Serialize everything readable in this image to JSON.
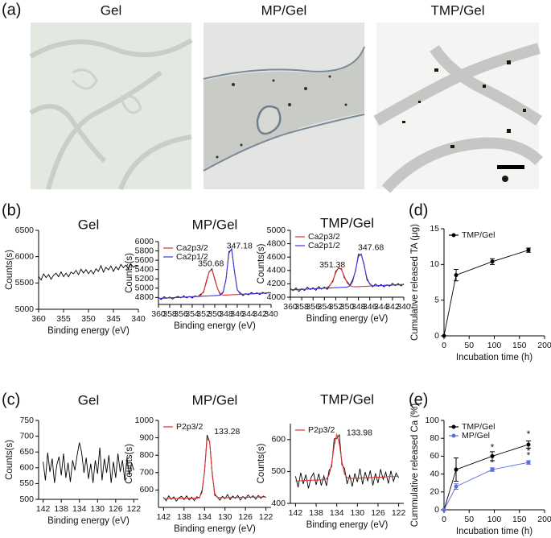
{
  "panel_labels": [
    "(a)",
    "(b)",
    "(c)",
    "(d)",
    "(e)"
  ],
  "images": [
    {
      "title": "Gel"
    },
    {
      "title": "MP/Gel"
    },
    {
      "title": "TMP/Gel"
    }
  ],
  "chart_data": [
    {
      "type": "line",
      "title": "Gel",
      "xlabel": "Binding energy (eV)",
      "ylabel": "Counts(s)",
      "xlim": [
        360,
        340
      ],
      "xticks": [
        360,
        355,
        350,
        345,
        340
      ],
      "ylim": [
        5000,
        6500
      ],
      "yticks": [
        5000,
        5500,
        6000,
        6500
      ],
      "x": [
        360,
        359.5,
        359,
        358.5,
        358,
        357.5,
        357,
        356.5,
        356,
        355.5,
        355,
        354.5,
        354,
        353.5,
        353,
        352.5,
        352,
        351.5,
        351,
        350.5,
        350,
        349.5,
        349,
        348.5,
        348,
        347.5,
        347,
        346.5,
        346,
        345.5,
        345,
        344.5,
        344,
        343.5,
        343,
        342.5,
        342,
        341.5,
        341,
        340.5,
        340
      ],
      "series": [
        {
          "color": "#000000",
          "values": [
            5624,
            5556,
            5672,
            5602,
            5660,
            5570,
            5646,
            5686,
            5618,
            5710,
            5620,
            5686,
            5616,
            5708,
            5674,
            5740,
            5660,
            5762,
            5688,
            5754,
            5676,
            5742,
            5672,
            5768,
            5720,
            5830,
            5706,
            5798,
            5748,
            5824,
            5720,
            5810,
            5752,
            5854,
            5788,
            5840,
            5766,
            5862,
            5798,
            5834,
            5830
          ]
        }
      ]
    },
    {
      "type": "line",
      "title": "MP/Gel",
      "xlabel": "Binding energy (eV)",
      "ylabel": "Counts(s)",
      "legend": "upper left",
      "xlim": [
        360,
        340
      ],
      "xticks": [
        360,
        358,
        356,
        354,
        352,
        350,
        348,
        346,
        344,
        342,
        340
      ],
      "ylim": [
        4650,
        6000
      ],
      "yticks": [
        4800,
        5000,
        5200,
        5400,
        5600,
        5800,
        6000
      ],
      "x": [
        360,
        359.5,
        359,
        358.5,
        358,
        357.5,
        357,
        356.5,
        356,
        355.5,
        355,
        354.5,
        354,
        353.5,
        353,
        352.5,
        352,
        351.5,
        351,
        350.5,
        350,
        349.5,
        349,
        348.5,
        348,
        347.5,
        347,
        346.5,
        346,
        345.5,
        345,
        344.5,
        344,
        343.5,
        343,
        342.5,
        342,
        341.5,
        341,
        340.5,
        340
      ],
      "series": [
        {
          "color": "#000000",
          "values": [
            4792,
            4758,
            4816,
            4781,
            4810,
            4765,
            4803,
            4823,
            4789,
            4835,
            4790,
            4823,
            4788,
            4834,
            4817,
            4870,
            4908,
            5153,
            5347,
            5418,
            5180,
            4991,
            4853,
            4923,
            5186,
            5782,
            5828,
            5368,
            4959,
            4902,
            4840,
            4885,
            4856,
            4907,
            4874,
            4900,
            4863,
            4911,
            4879,
            4907,
            4895
          ]
        },
        {
          "name": "Ca2p3/2",
          "color": "#e03030",
          "values": [
            4780,
            4783,
            4786,
            4789,
            4792,
            4795,
            4798,
            4801,
            4804,
            4807,
            4810,
            4813,
            4816,
            4819,
            4822,
            4845,
            4926,
            5123,
            5357,
            5398,
            5202,
            4983,
            4879,
            4849,
            4852,
            4855,
            4858,
            4861,
            4864,
            4867,
            4870,
            4873,
            4876,
            4879,
            4882,
            4885,
            4888,
            4891,
            4894,
            4897,
            4900
          ]
        },
        {
          "name": "Ca2p1/2",
          "color": "#3a3ae0",
          "values": [
            4780,
            4783,
            4786,
            4789,
            4792,
            4795,
            4798,
            4801,
            4804,
            4807,
            4810,
            4813,
            4816,
            4819,
            4822,
            4825,
            4828,
            4831,
            4834,
            4837,
            4840,
            4843,
            4850,
            4908,
            5198,
            5742,
            5853,
            5350,
            4969,
            4877,
            4870,
            4873,
            4876,
            4879,
            4882,
            4885,
            4888,
            4891,
            4894,
            4897,
            4900
          ]
        }
      ],
      "annotations": [
        {
          "text": "350.68",
          "x": 350.68,
          "y": 5520
        },
        {
          "text": "347.18",
          "x": 345.6,
          "y": 5900
        }
      ]
    },
    {
      "type": "line",
      "title": "TMP/Gel",
      "xlabel": "Binding energy (eV)",
      "ylabel": "Counts(s)",
      "legend": "upper left",
      "xlim": [
        360,
        340
      ],
      "xticks": [
        360,
        358,
        356,
        354,
        352,
        350,
        348,
        346,
        344,
        342,
        340
      ],
      "ylim": [
        4000,
        5000
      ],
      "yticks": [
        4000,
        4200,
        4400,
        4600,
        4800,
        5000
      ],
      "x": [
        360,
        359.5,
        359,
        358.5,
        358,
        357.5,
        357,
        356.5,
        356,
        355.5,
        355,
        354.5,
        354,
        353.5,
        353,
        352.5,
        352,
        351.5,
        351,
        350.5,
        350,
        349.5,
        349,
        348.5,
        348,
        347.5,
        347,
        346.5,
        346,
        345.5,
        345,
        344.5,
        344,
        343.5,
        343,
        342.5,
        342,
        341.5,
        341,
        340.5,
        340
      ],
      "series": [
        {
          "color": "#000000",
          "values": [
            4130,
            4097,
            4139,
            4086,
            4128,
            4100,
            4150,
            4114,
            4141,
            4103,
            4160,
            4120,
            4152,
            4117,
            4185,
            4235,
            4389,
            4431,
            4426,
            4292,
            4233,
            4180,
            4264,
            4393,
            4643,
            4634,
            4494,
            4260,
            4206,
            4154,
            4198,
            4162,
            4189,
            4154,
            4186,
            4165,
            4207,
            4172,
            4204,
            4168,
            4200
          ]
        },
        {
          "name": "Ca2p3/2",
          "color": "#e03030",
          "values": [
            4110,
            4112,
            4114,
            4116,
            4118,
            4120,
            4122,
            4124,
            4126,
            4128,
            4130,
            4132,
            4134,
            4145,
            4177,
            4253,
            4364,
            4441,
            4414,
            4312,
            4218,
            4171,
            4158,
            4156,
            4158,
            4160,
            4162,
            4164,
            4166,
            4168,
            4170,
            4172,
            4174,
            4176,
            4178,
            4180,
            4182,
            4184,
            4186,
            4188,
            4190
          ]
        },
        {
          "name": "Ca2p1/2",
          "color": "#3a3ae0",
          "values": [
            4110,
            4112,
            4114,
            4116,
            4118,
            4120,
            4122,
            4124,
            4126,
            4128,
            4130,
            4132,
            4134,
            4136,
            4138,
            4140,
            4142,
            4144,
            4146,
            4148,
            4150,
            4169,
            4238,
            4408,
            4608,
            4644,
            4474,
            4285,
            4194,
            4172,
            4170,
            4172,
            4174,
            4176,
            4178,
            4180,
            4182,
            4184,
            4186,
            4188,
            4190
          ]
        }
      ],
      "annotations": [
        {
          "text": "351.38",
          "x": 352.6,
          "y": 4480
        },
        {
          "text": "347.68",
          "x": 345.8,
          "y": 4740
        }
      ]
    },
    {
      "type": "line",
      "title": "Gel",
      "xlabel": "Binding energy (eV)",
      "ylabel": "Counts(s)",
      "xlim": [
        143,
        121
      ],
      "xticks": [
        142,
        138,
        134,
        130,
        126,
        122
      ],
      "ylim": [
        500,
        750
      ],
      "yticks": [
        500,
        550,
        600,
        650,
        700,
        750
      ],
      "x": [
        142,
        141.5,
        141,
        140.5,
        140,
        139.5,
        139,
        138.5,
        138,
        137.5,
        137,
        136.5,
        136,
        135.5,
        135,
        134.5,
        134,
        133.5,
        133,
        132.5,
        132,
        131.5,
        131,
        130.5,
        130,
        129.5,
        129,
        128.5,
        128,
        127.5,
        127,
        126.5,
        126,
        125.5,
        125,
        124.5,
        124,
        123.5,
        123,
        122.5,
        122
      ],
      "series": [
        {
          "color": "#000000",
          "values": [
            619,
            560,
            648,
            587,
            629,
            552,
            608,
            635,
            576,
            645,
            568,
            616,
            555,
            624,
            592,
            640,
            680,
            648,
            584,
            632,
            565,
            613,
            552,
            624,
            581,
            664,
            560,
            629,
            584,
            640,
            552,
            619,
            568,
            645,
            587,
            624,
            560,
            632,
            576,
            616,
            592
          ]
        }
      ]
    },
    {
      "type": "line",
      "title": "MP/Gel",
      "xlabel": "Binding energy (eV)",
      "ylabel": "Counts(s)",
      "legend": "upper left",
      "xlim": [
        143,
        121
      ],
      "xticks": [
        142,
        138,
        134,
        130,
        126,
        122
      ],
      "ylim": [
        500,
        1000
      ],
      "yticks": [
        600,
        700,
        800,
        900,
        1000
      ],
      "x": [
        142,
        141.5,
        141,
        140.5,
        140,
        139.5,
        139,
        138.5,
        138,
        137.5,
        137,
        136.5,
        136,
        135.5,
        135,
        134.5,
        134,
        133.5,
        133,
        132.5,
        132,
        131.5,
        131,
        130.5,
        130,
        129.5,
        129,
        128.5,
        128,
        127.5,
        127,
        126.5,
        126,
        125.5,
        125,
        124.5,
        124,
        123.5,
        123,
        122.5,
        122
      ],
      "series": [
        {
          "color": "#000000",
          "values": [
            558,
            538,
            566,
            546,
            561,
            536,
            555,
            564,
            544,
            566,
            543,
            559,
            539,
            561,
            554,
            597,
            702,
            916,
            875,
            700,
            569,
            561,
            541,
            564,
            550,
            574,
            545,
            565,
            552,
            569,
            542,
            563,
            548,
            572,
            555,
            567,
            547,
            569,
            552,
            565,
            557
          ]
        },
        {
          "name": "P2p3/2",
          "color": "#e03030",
          "values": [
            550,
            550,
            551,
            551,
            551,
            551,
            552,
            552,
            552,
            552,
            553,
            553,
            553,
            553,
            557,
            585,
            711,
            896,
            880,
            690,
            580,
            557,
            556,
            556,
            556,
            556,
            557,
            557,
            557,
            557,
            558,
            558,
            558,
            558,
            559,
            559,
            559,
            559,
            560,
            560,
            560
          ]
        }
      ],
      "annotations": [
        {
          "text": "133.28",
          "x": 129.6,
          "y": 935
        }
      ]
    },
    {
      "type": "line",
      "title": "TMP/Gel",
      "xlabel": "Binding energy (eV)",
      "ylabel": "Counts(s)",
      "legend": "upper left",
      "xlim": [
        143,
        121
      ],
      "xticks": [
        142,
        138,
        134,
        130,
        126,
        122
      ],
      "ylim": [
        400,
        650
      ],
      "yticks": [
        400,
        500,
        600
      ],
      "x": [
        142,
        141.5,
        141,
        140.5,
        140,
        139.5,
        139,
        138.5,
        138,
        137.5,
        137,
        136.5,
        136,
        135.5,
        135,
        134.5,
        134,
        133.5,
        133,
        132.5,
        132,
        131.5,
        131,
        130.5,
        130,
        129.5,
        129,
        128.5,
        128,
        127.5,
        127,
        126.5,
        126,
        125.5,
        125,
        124.5,
        124,
        123.5,
        123,
        122.5,
        122
      ],
      "series": [
        {
          "color": "#000000",
          "values": [
            485,
            450,
            496,
            461,
            490,
            447,
            480,
            495,
            458,
            493,
            456,
            486,
            455,
            503,
            515,
            602,
            604,
            615,
            520,
            510,
            461,
            488,
            453,
            494,
            467,
            509,
            460,
            498,
            471,
            503,
            456,
            494,
            464,
            507,
            475,
            498,
            462,
            502,
            469,
            495,
            480
          ]
        },
        {
          "name": "P2p3/2",
          "color": "#e03030",
          "values": [
            470,
            470,
            471,
            471,
            472,
            472,
            472,
            473,
            473,
            473,
            474,
            474,
            477,
            488,
            523,
            582,
            616,
            587,
            530,
            492,
            481,
            478,
            478,
            479,
            479,
            479,
            480,
            480,
            481,
            481,
            481,
            482,
            482,
            482,
            483,
            483,
            484,
            484,
            484,
            485,
            485
          ]
        }
      ],
      "annotations": [
        {
          "text": "133.98",
          "x": 129.6,
          "y": 620
        }
      ]
    },
    {
      "type": "line",
      "markers": true,
      "xlabel": "Incubation time (h)",
      "ylabel": "Cumulative released TA  (μg)",
      "legend": "upper left",
      "xlim": [
        0,
        200
      ],
      "xticks": [
        0,
        50,
        100,
        150,
        200
      ],
      "ylim": [
        0,
        15
      ],
      "yticks": [
        0,
        5,
        10,
        15
      ],
      "x": [
        0,
        24,
        96,
        168
      ],
      "series": [
        {
          "name": "TMP/Gel",
          "color": "#000000",
          "values": [
            0,
            8.5,
            10.4,
            12.0
          ],
          "errors": [
            0,
            0.8,
            0.4,
            0.3
          ]
        }
      ]
    },
    {
      "type": "line",
      "markers": true,
      "xlabel": "Incubation time (h)",
      "ylabel": "Cummulative released Ca (%)",
      "legend": "upper left",
      "xlim": [
        0,
        200
      ],
      "xticks": [
        0,
        50,
        100,
        150,
        200
      ],
      "ylim": [
        0,
        100
      ],
      "yticks": [
        0,
        20,
        40,
        60,
        80,
        100
      ],
      "x": [
        0,
        24,
        96,
        168
      ],
      "series": [
        {
          "name": "TMP/Gel",
          "color": "#000000",
          "values": [
            0,
            45,
            60,
            73
          ],
          "errors": [
            0,
            13,
            5,
            4
          ]
        },
        {
          "name": "MP/Gel",
          "color": "#5b6ee1",
          "values": [
            0,
            26,
            45,
            53
          ],
          "errors": [
            0,
            3,
            2,
            2
          ]
        }
      ],
      "annotations": [
        {
          "text": "*",
          "x": 96,
          "y": 69
        },
        {
          "text": "*",
          "x": 96,
          "y": 52
        },
        {
          "text": "*",
          "x": 168,
          "y": 84
        },
        {
          "text": "*",
          "x": 168,
          "y": 65
        },
        {
          "text": "*",
          "x": 168,
          "y": 60
        }
      ]
    }
  ]
}
